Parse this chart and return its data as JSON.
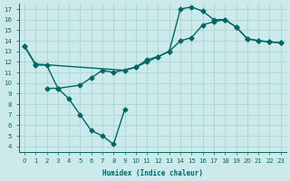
{
  "bg_color": "#cceaea",
  "grid_color": "#b0d8d8",
  "line_color": "#006666",
  "xlabel": "Humidex (Indice chaleur)",
  "xlim": [
    -0.5,
    23.5
  ],
  "ylim": [
    3.5,
    17.5
  ],
  "xticks": [
    0,
    1,
    2,
    3,
    4,
    5,
    6,
    7,
    8,
    9,
    10,
    11,
    12,
    13,
    14,
    15,
    16,
    17,
    18,
    19,
    20,
    21,
    22,
    23
  ],
  "yticks": [
    4,
    5,
    6,
    7,
    8,
    9,
    10,
    11,
    12,
    13,
    14,
    15,
    16,
    17
  ],
  "line1_x": [
    0,
    1,
    2,
    3,
    4,
    5,
    6,
    7,
    8,
    9
  ],
  "line1_y": [
    13.5,
    11.7,
    11.7,
    9.5,
    8.5,
    7.0,
    5.5,
    5.0,
    4.2,
    7.5
  ],
  "line2_x": [
    2,
    3,
    5,
    6,
    7,
    8,
    10,
    11,
    12,
    13,
    14,
    15,
    16,
    17,
    18,
    19,
    20,
    21,
    22,
    23
  ],
  "line2_y": [
    9.5,
    9.5,
    9.8,
    10.5,
    11.2,
    11.0,
    11.5,
    12.0,
    12.5,
    13.0,
    14.0,
    14.3,
    15.5,
    15.8,
    16.0,
    15.3,
    14.2,
    14.0,
    13.9,
    13.8
  ],
  "line3_x": [
    0,
    1,
    9,
    10,
    11,
    12,
    13,
    14,
    15,
    16,
    17,
    18,
    19,
    20,
    21,
    22,
    23
  ],
  "line3_y": [
    13.5,
    11.8,
    11.2,
    11.5,
    12.2,
    12.5,
    13.0,
    17.0,
    17.2,
    16.8,
    16.0,
    16.0,
    15.3,
    14.2,
    14.0,
    13.9,
    13.8
  ]
}
